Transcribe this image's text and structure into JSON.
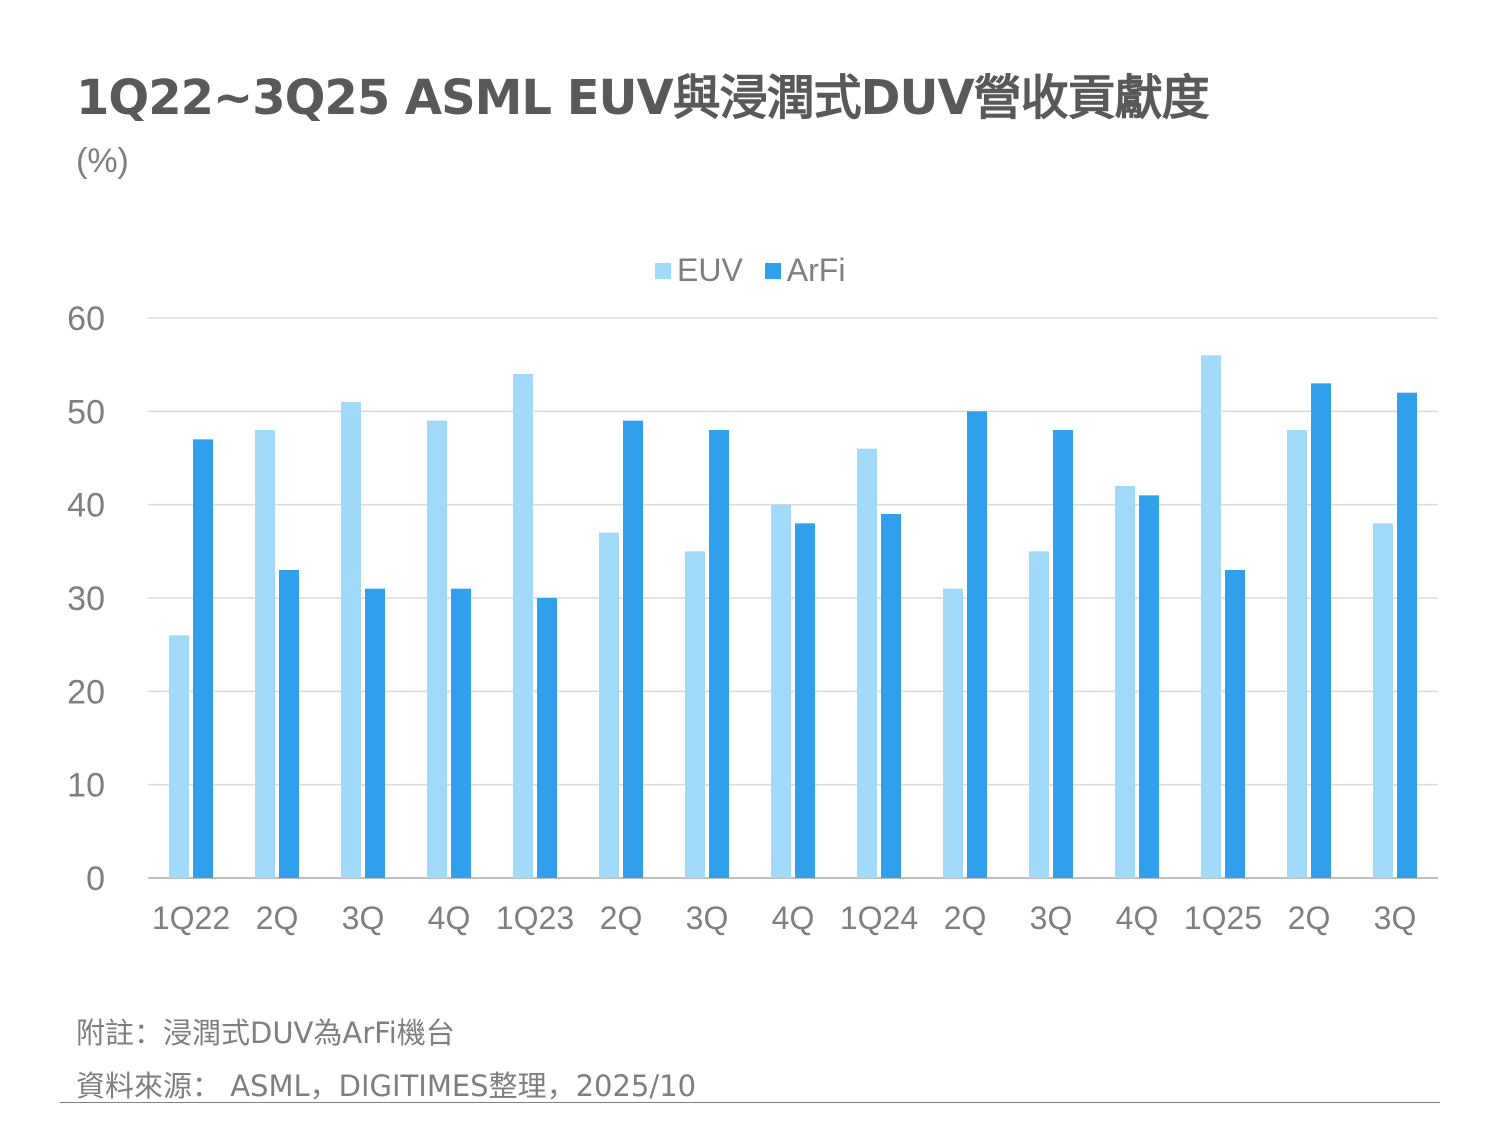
{
  "chart_data": {
    "type": "bar",
    "title": "1Q22~3Q25 ASML EUV與浸潤式DUV營收貢獻度",
    "ylabel": "(%)",
    "xlabel": "",
    "ylim": [
      0,
      60
    ],
    "yticks": [
      0,
      10,
      20,
      30,
      40,
      50,
      60
    ],
    "grid": true,
    "legend_placement": "top-center",
    "categories": [
      "1Q22",
      "2Q",
      "3Q",
      "4Q",
      "1Q23",
      "2Q",
      "3Q",
      "4Q",
      "1Q24",
      "2Q",
      "3Q",
      "4Q",
      "1Q25",
      "2Q",
      "3Q"
    ],
    "series": [
      {
        "name": "EUV",
        "color": "#a0daf8",
        "values": [
          26,
          48,
          51,
          49,
          54,
          37,
          35,
          40,
          46,
          31,
          35,
          42,
          56,
          48,
          38
        ]
      },
      {
        "name": "ArFi",
        "color": "#31a0ec",
        "values": [
          47,
          33,
          31,
          31,
          30,
          49,
          48,
          38,
          39,
          50,
          48,
          41,
          33,
          53,
          52
        ]
      }
    ]
  },
  "notes": {
    "note": "附註：浸潤式DUV為ArFi機台",
    "source": "資料來源： ASML，DIGITIMES整理，2025/10"
  }
}
